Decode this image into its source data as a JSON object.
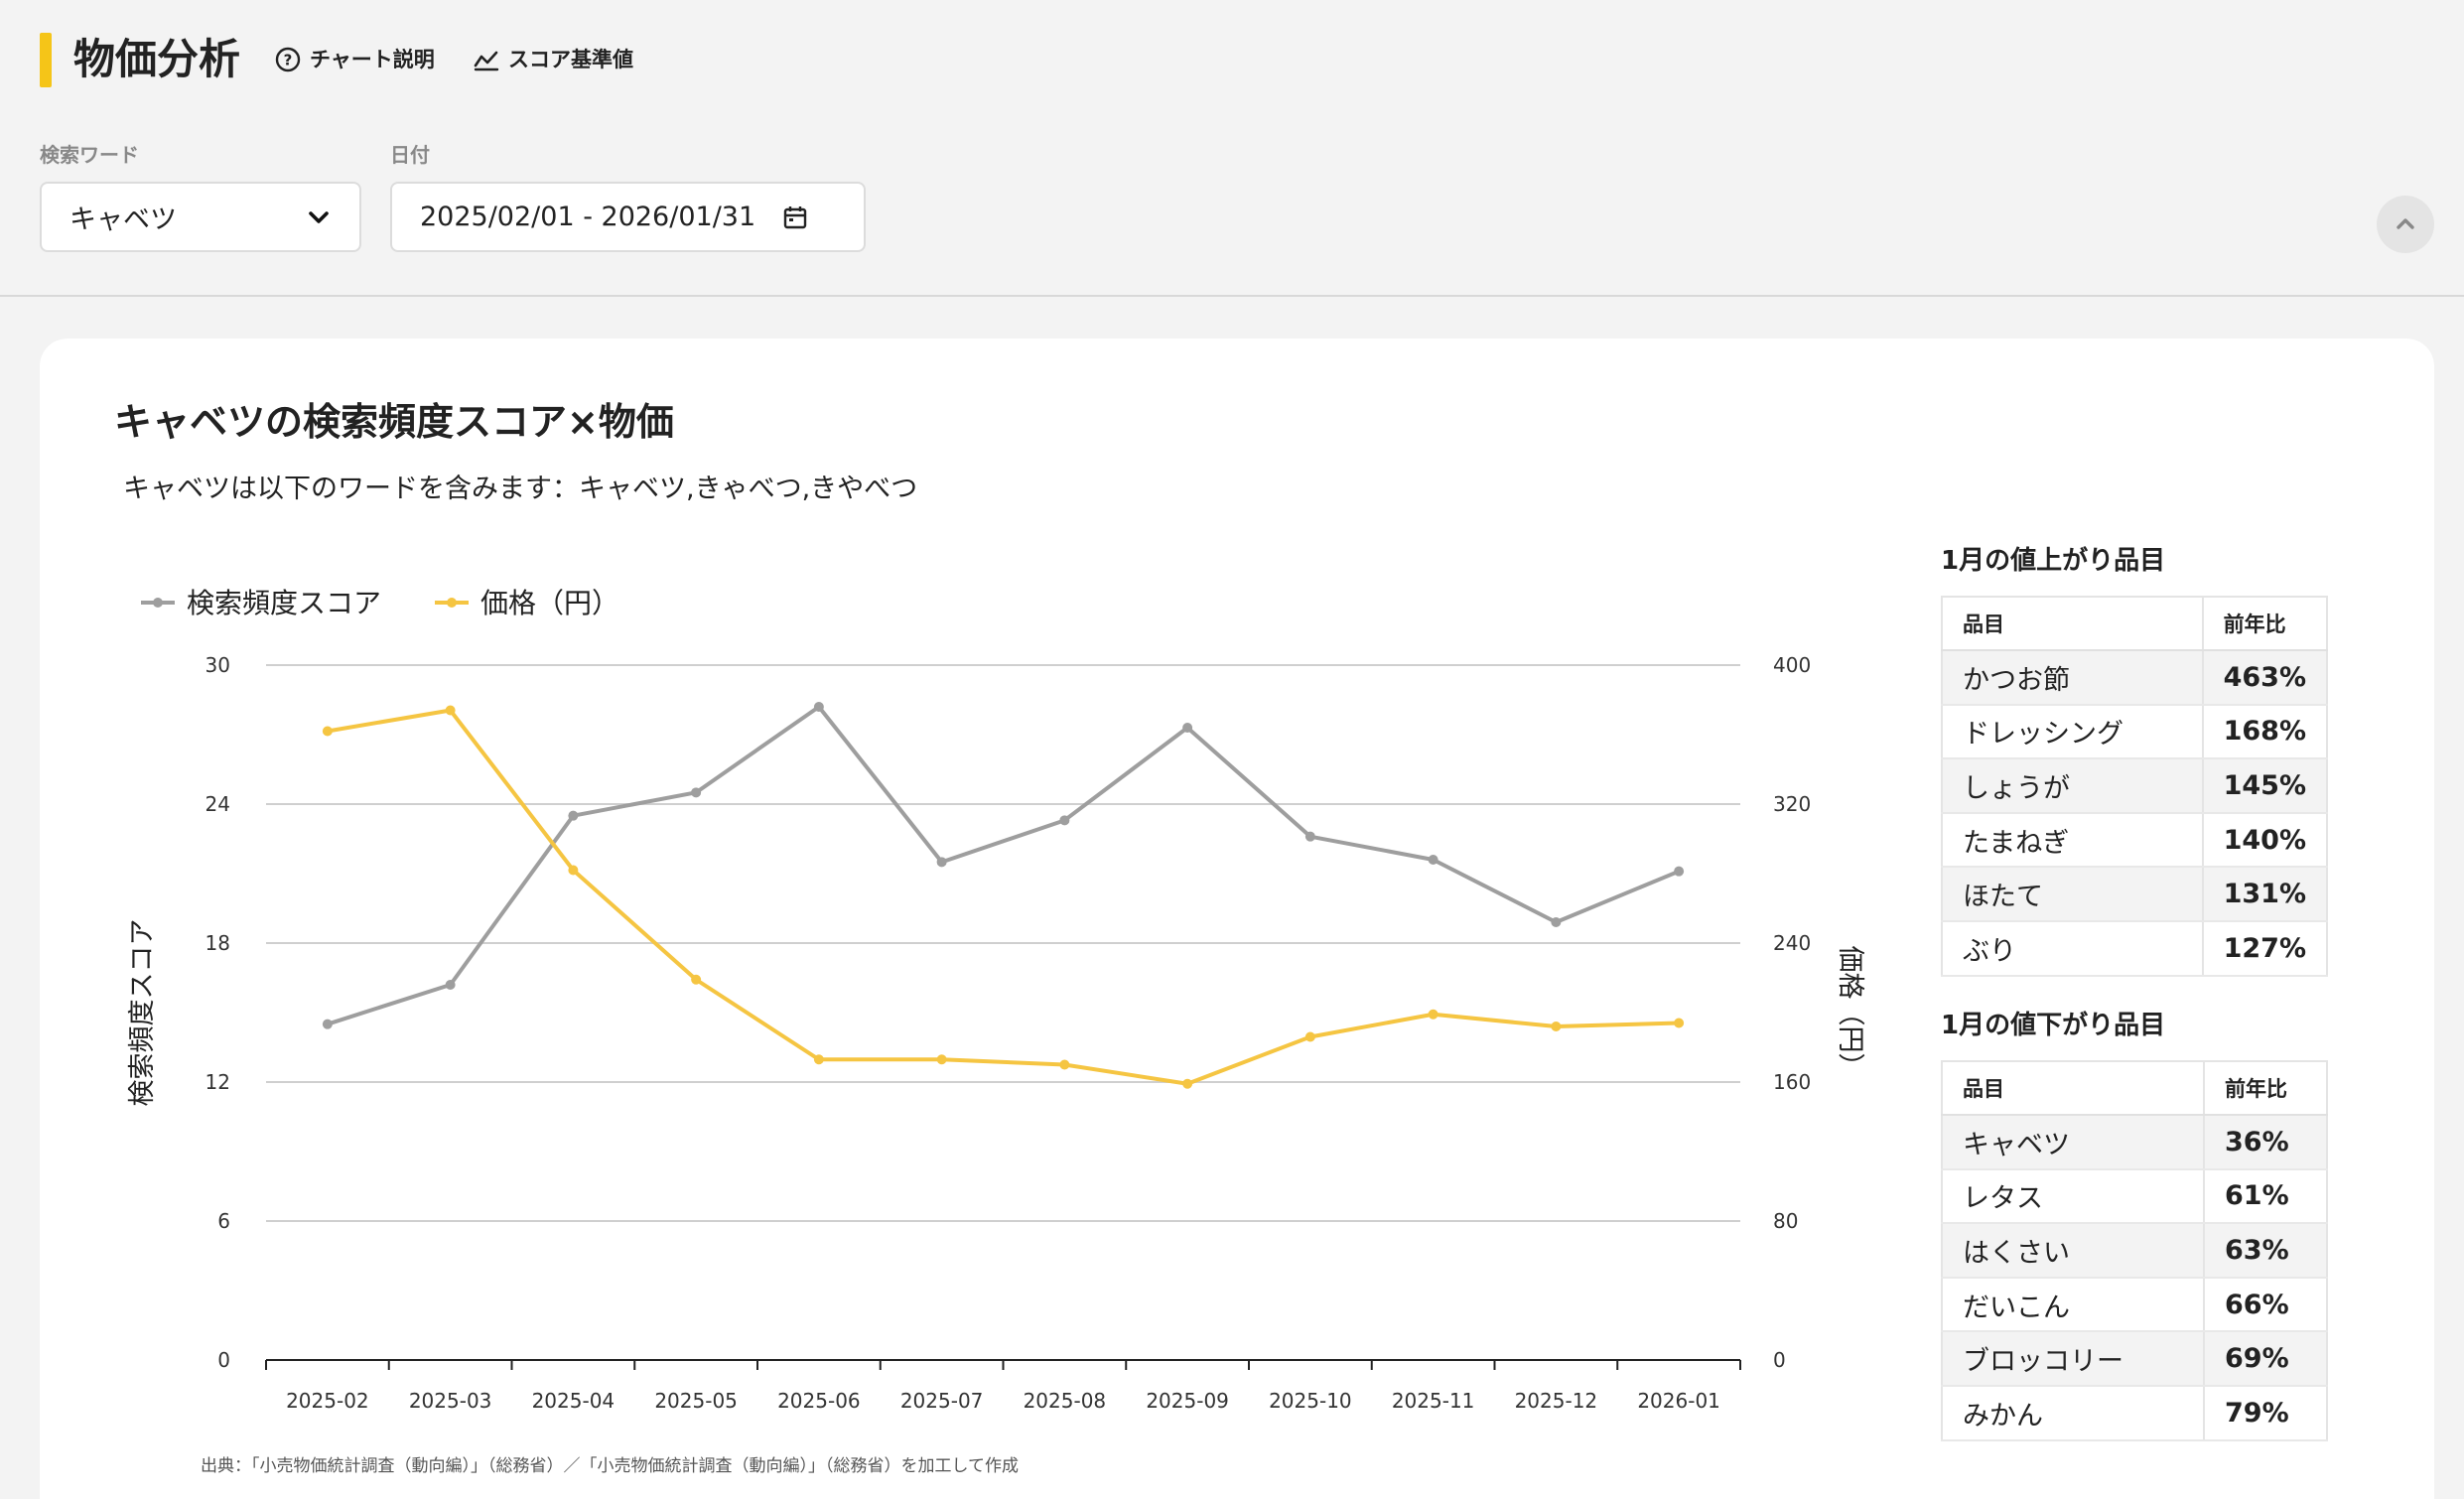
{
  "header": {
    "title": "物価分析",
    "links": [
      {
        "label": "チャート説明",
        "icon": "question-circle-icon"
      },
      {
        "label": "スコア基準値",
        "icon": "trend-line-icon"
      }
    ],
    "accent_color": "#f5c518"
  },
  "filters": {
    "keyword_label": "検索ワード",
    "keyword_value": "キャベツ",
    "date_label": "日付",
    "date_value": "2025/02/01 - 2026/01/31"
  },
  "card": {
    "title": "キャベツの検索頻度スコア×物価",
    "subtitle": "キャベツは以下のワードを含みます：キャベツ,きゃべつ,きやべつ",
    "source": "出典：「小売物価統計調査（動向編）」（総務省）／「小売物価統計調査（動向編）」（総務省）を加工して作成"
  },
  "chart_data": {
    "type": "line",
    "categories": [
      "2025-02",
      "2025-03",
      "2025-04",
      "2025-05",
      "2025-06",
      "2025-07",
      "2025-08",
      "2025-09",
      "2025-10",
      "2025-11",
      "2025-12",
      "2026-01"
    ],
    "series": [
      {
        "name": "検索頻度スコア",
        "axis": "left",
        "color": "#9e9e9e",
        "values": [
          14.5,
          16.2,
          23.5,
          24.5,
          28.2,
          21.5,
          23.3,
          27.3,
          22.6,
          21.6,
          18.9,
          21.1
        ]
      },
      {
        "name": "価格（円）",
        "axis": "right",
        "color": "#f5c542",
        "values": [
          362,
          374,
          282,
          219,
          173,
          173,
          170,
          159,
          186,
          199,
          192,
          194
        ]
      }
    ],
    "ylabel": "検索頻度スコア",
    "y2label": "価格（円）",
    "ylim": [
      0,
      30
    ],
    "y2lim": [
      0,
      400
    ],
    "yticks": [
      "0",
      "6",
      "12",
      "18",
      "24",
      "30"
    ],
    "y2ticks": [
      "0",
      "80",
      "160",
      "240",
      "320",
      "400"
    ],
    "grid": true,
    "legend": "top-left"
  },
  "price_up": {
    "title": "1月の値上がり品目",
    "headers": [
      "品目",
      "前年比"
    ],
    "rows": [
      [
        "かつお節",
        "463%"
      ],
      [
        "ドレッシング",
        "168%"
      ],
      [
        "しょうが",
        "145%"
      ],
      [
        "たまねぎ",
        "140%"
      ],
      [
        "ほたて",
        "131%"
      ],
      [
        "ぶり",
        "127%"
      ]
    ]
  },
  "price_down": {
    "title": "1月の値下がり品目",
    "headers": [
      "品目",
      "前年比"
    ],
    "rows": [
      [
        "キャベツ",
        "36%"
      ],
      [
        "レタス",
        "61%"
      ],
      [
        "はくさい",
        "63%"
      ],
      [
        "だいこん",
        "66%"
      ],
      [
        "ブロッコリー",
        "69%"
      ],
      [
        "みかん",
        "79%"
      ]
    ]
  }
}
